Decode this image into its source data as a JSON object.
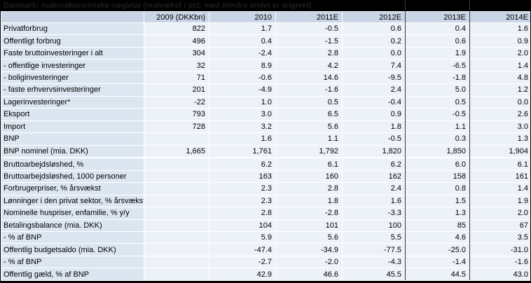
{
  "title": "Danmark: makroøkonomiske nøgletal (realvækst i pct. med mindre andet er angivet)",
  "chart_data": {
    "type": "table",
    "columns": [
      "",
      "2009 (DKKbn)",
      "2010",
      "2011E",
      "2012E",
      "2013E",
      "2014E"
    ],
    "rows": [
      {
        "label": "Privatforbrug",
        "values": [
          "822",
          "1.7",
          "-0.5",
          "0.6",
          "0.4",
          "1.6"
        ]
      },
      {
        "label": "Offentligt forbrug",
        "values": [
          "496",
          "0.4",
          "-1.5",
          "0.2",
          "0.6",
          "0.9"
        ]
      },
      {
        "label": "Faste bruttoinvesteringer i alt",
        "values": [
          "304",
          "-2.4",
          "2.8",
          "0.0",
          "1.9",
          "2.0"
        ]
      },
      {
        "label": " - offentlige investeringer",
        "values": [
          "32",
          "8.9",
          "4.2",
          "7.4",
          "-6.5",
          "1.4"
        ]
      },
      {
        "label": " - boliginvesteringer",
        "values": [
          "71",
          "-0.6",
          "14.6",
          "-9.5",
          "-1.8",
          "4.8"
        ]
      },
      {
        "label": " - faste erhvervsinvesteringer",
        "values": [
          "201",
          "-4.9",
          "-1.6",
          "2.4",
          "5.0",
          "1.2"
        ]
      },
      {
        "label": "Lagerinvesteringer*",
        "values": [
          "-22",
          "1.0",
          "0.5",
          "-0.4",
          "0.5",
          "0.0"
        ]
      },
      {
        "label": "Eksport",
        "values": [
          "793",
          "3.0",
          "6.5",
          "0.9",
          "-0.5",
          "2.6"
        ]
      },
      {
        "label": "Import",
        "values": [
          "728",
          "3.2",
          "5.6",
          "1.8",
          "1.1",
          "3.0"
        ]
      },
      {
        "label": "BNP",
        "values": [
          "",
          "1.6",
          "1.1",
          "-0.5",
          "0.3",
          "1.3"
        ]
      },
      {
        "label": "BNP nominel (mia. DKK)",
        "values": [
          "1,665",
          "1,761",
          "1,792",
          "1,820",
          "1,850",
          "1,904"
        ]
      },
      {
        "label": "",
        "values": [
          "",
          "",
          "",
          "",
          "",
          ""
        ],
        "spacer": true
      },
      {
        "label": "Bruttoarbejdsløshed, %",
        "values": [
          "",
          "6.2",
          "6.1",
          "6.2",
          "6.0",
          "6.1"
        ]
      },
      {
        "label": "Bruttoarbejdsløshed, 1000 personer",
        "values": [
          "",
          "163",
          "160",
          "162",
          "158",
          "161"
        ]
      },
      {
        "label": "Forbrugerpriser, % årsvækst",
        "values": [
          "",
          "2.3",
          "2.8",
          "2.4",
          "0.8",
          "1.4"
        ]
      },
      {
        "label": "Lønninger i den privat sektor, % årsvækst",
        "values": [
          "",
          "2.3",
          "1.8",
          "1.6",
          "1.5",
          "1.9"
        ]
      },
      {
        "label": "Nominelle huspriser, enfamilie, % y/y",
        "values": [
          "",
          "2.8",
          "-2.8",
          "-3.3",
          "1.3",
          "2.0"
        ]
      },
      {
        "label": "Betalingsbalance (mia. DKK)",
        "values": [
          "",
          "104",
          "101",
          "100",
          "85",
          "67"
        ]
      },
      {
        "label": " - % af BNP",
        "values": [
          "",
          "5.9",
          "5.6",
          "5.5",
          "4.6",
          "3.5"
        ]
      },
      {
        "label": "Offentlig budgetsaldo (mia. DKK)",
        "values": [
          "",
          "-47.4",
          "-34.9",
          "-77.5",
          "-25.0",
          "-31.0"
        ]
      },
      {
        "label": " - % af BNP",
        "values": [
          "",
          "-2.7",
          "-2.0",
          "-4.3",
          "-1.4",
          "-1.6"
        ]
      },
      {
        "label": "Offentlig gæld, % af BNP",
        "values": [
          "",
          "42.9",
          "46.6",
          "45.5",
          "44.5",
          "43.0"
        ]
      }
    ]
  },
  "colors": {
    "title_bg": "#000000",
    "title_text": "#1e1e1e",
    "header_bg": "#c9d5e6",
    "label_bg": "#dce6f1",
    "cell_bg": "#edf2f9",
    "grid": "#ffffff",
    "text": "#000000"
  }
}
